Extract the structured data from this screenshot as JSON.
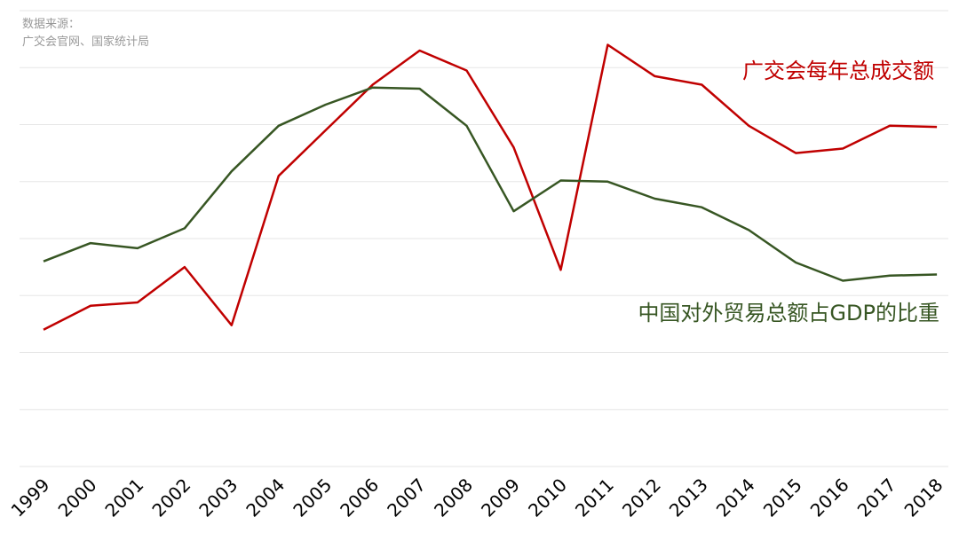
{
  "source": {
    "line1": "数据来源：",
    "line2": "广交会官网、国家统计局"
  },
  "chart_data": {
    "type": "line",
    "x": [
      "1999",
      "2000",
      "2001",
      "2002",
      "2003",
      "2004",
      "2005",
      "2006",
      "2007",
      "2008",
      "2009",
      "2010",
      "2011",
      "2012",
      "2013",
      "2014",
      "2015",
      "2016",
      "2017",
      "2018"
    ],
    "ylim": [
      0,
      8
    ],
    "grid": true,
    "series": [
      {
        "name": "广交会每年总成交额",
        "color": "#c00000",
        "values": [
          2.4,
          2.82,
          2.88,
          3.5,
          2.48,
          5.1,
          5.9,
          6.7,
          7.3,
          6.95,
          5.6,
          3.45,
          7.4,
          6.85,
          6.7,
          5.98,
          5.5,
          5.58,
          5.98,
          5.96
        ]
      },
      {
        "name": "中国对外贸易总额占GDP的比重",
        "color": "#375623",
        "values": [
          3.6,
          3.92,
          3.83,
          4.18,
          5.18,
          5.98,
          6.35,
          6.65,
          6.63,
          5.98,
          4.48,
          5.02,
          5.0,
          4.7,
          4.55,
          4.15,
          3.58,
          3.26,
          3.35,
          3.37
        ]
      }
    ]
  }
}
